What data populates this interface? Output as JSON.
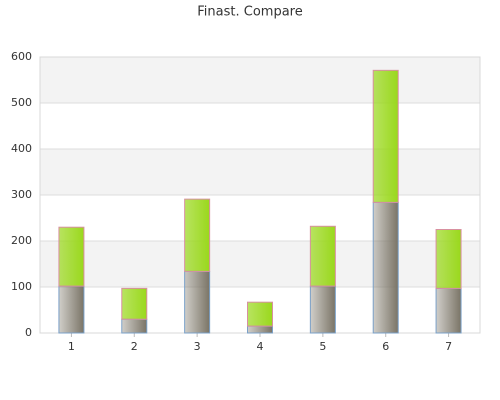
{
  "chart_data": {
    "type": "stacked-bar",
    "title": "Finast. Compare",
    "categories": [
      "1",
      "2",
      "3",
      "4",
      "5",
      "6",
      "7"
    ],
    "series": [
      {
        "color": "#7a7466",
        "values": [
          102,
          30,
          134,
          15,
          102,
          284,
          97
        ]
      },
      {
        "color": "#9ad81c",
        "values": [
          128,
          67,
          157,
          52,
          130,
          287,
          128
        ]
      }
    ],
    "ylim": [
      0,
      600
    ],
    "yticks": [
      0,
      100,
      200,
      300,
      400,
      500,
      600
    ],
    "grid": true
  }
}
